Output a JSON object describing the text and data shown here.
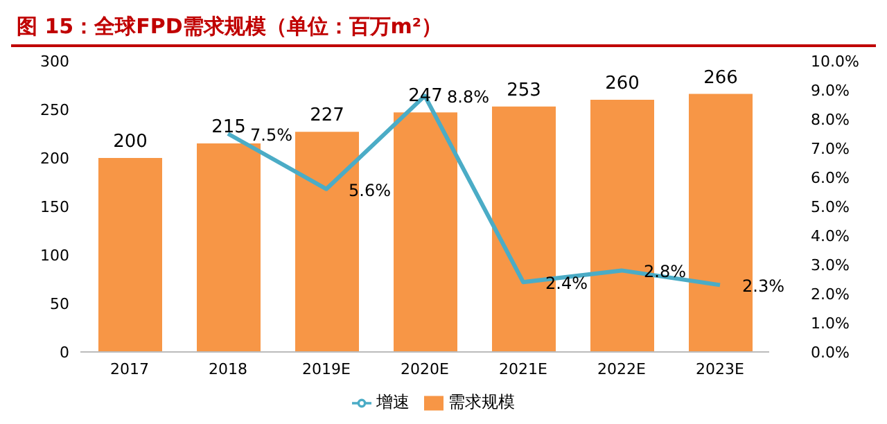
{
  "chart_data": {
    "type": "bar",
    "title": "图 15：全球FPD需求规模（单位：百万m²）",
    "categories": [
      "2017",
      "2018",
      "2019E",
      "2020E",
      "2021E",
      "2022E",
      "2023E"
    ],
    "series": [
      {
        "name": "需求规模",
        "color": "#f79646",
        "values": [
          200,
          215,
          227,
          247,
          253,
          260,
          266
        ],
        "value_labels": [
          "200",
          "215",
          "227",
          "247",
          "253",
          "260",
          "266"
        ]
      },
      {
        "name": "增速",
        "type": "line",
        "axis": "y2",
        "color": "#4bacc6",
        "values": [
          null,
          7.5,
          5.6,
          8.8,
          2.4,
          2.8,
          2.3
        ],
        "value_labels": [
          null,
          "7.5%",
          "5.6%",
          "8.8%",
          "2.4%",
          "2.8%",
          "2.3%"
        ]
      }
    ],
    "ylim": [
      0,
      300
    ],
    "yticks": [
      0,
      50,
      100,
      150,
      200,
      250,
      300
    ],
    "y2lim": [
      0,
      10
    ],
    "y2ticks": [
      {
        "value": 0,
        "label": "0.0%"
      },
      {
        "value": 1,
        "label": "1.0%"
      },
      {
        "value": 2,
        "label": "2.0%"
      },
      {
        "value": 3,
        "label": "3.0%"
      },
      {
        "value": 4,
        "label": "4.0%"
      },
      {
        "value": 5,
        "label": "5.0%"
      },
      {
        "value": 6,
        "label": "6.0%"
      },
      {
        "value": 7,
        "label": "7.0%"
      },
      {
        "value": 8,
        "label": "8.0%"
      },
      {
        "value": 9,
        "label": "9.0%"
      },
      {
        "value": 10,
        "label": "10.0%"
      }
    ],
    "grid": false,
    "legend": "bottom",
    "marker": "none",
    "line_style": "solid"
  }
}
